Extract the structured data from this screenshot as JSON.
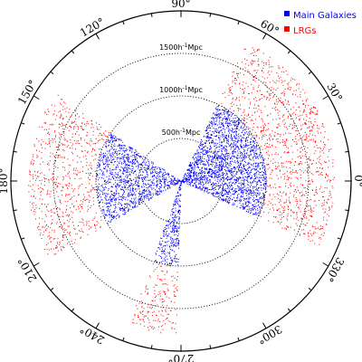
{
  "chart_data": {
    "type": "scatter",
    "coordinate_system": "polar",
    "angle_unit": "degrees",
    "radius_unit": "h^-1 Mpc",
    "radius_max": 2000,
    "grid": "dotted rings",
    "rings": [
      {
        "radius": 500,
        "label": "500h",
        "sup": "-1",
        "unit": "Mpc"
      },
      {
        "radius": 1000,
        "label": "1000h",
        "sup": "-1",
        "unit": "Mpc"
      },
      {
        "radius": 1500,
        "label": "1500h",
        "sup": "-1",
        "unit": "Mpc"
      }
    ],
    "angle_ticks": [
      {
        "angle": 0,
        "label": "0°"
      },
      {
        "angle": 30,
        "label": "30°"
      },
      {
        "angle": 60,
        "label": "60°"
      },
      {
        "angle": 90,
        "label": "90°"
      },
      {
        "angle": 120,
        "label": "120°"
      },
      {
        "angle": 150,
        "label": "150°"
      },
      {
        "angle": 180,
        "label": "180°"
      },
      {
        "angle": 210,
        "label": "210°"
      },
      {
        "angle": 240,
        "label": "240°"
      },
      {
        "angle": 270,
        "label": "270°"
      },
      {
        "angle": 300,
        "label": "300°"
      },
      {
        "angle": 330,
        "label": "330°"
      }
    ],
    "legend_position": "top-right",
    "series": [
      {
        "name": "Main Galaxies",
        "color": "#0000ff",
        "wedges": [
          {
            "angle_min": -25,
            "angle_max": 65,
            "r_min": 0,
            "r_max": 1000,
            "density": 3.2
          },
          {
            "angle_min": 145,
            "angle_max": 210,
            "r_min": 0,
            "r_max": 1000,
            "density": 2.6
          },
          {
            "angle_min": 250,
            "angle_max": 268,
            "r_min": 0,
            "r_max": 1000,
            "density": 2.4
          }
        ]
      },
      {
        "name": "LRGs",
        "color": "#ff0000",
        "wedges": [
          {
            "angle_min": -25,
            "angle_max": 65,
            "r_min": 1000,
            "r_max": 1800,
            "density": 0.7
          },
          {
            "angle_min": 145,
            "angle_max": 210,
            "r_min": 1000,
            "r_max": 1800,
            "density": 0.65
          },
          {
            "angle_min": 250,
            "angle_max": 268,
            "r_min": 1000,
            "r_max": 1800,
            "density": 0.6
          }
        ]
      }
    ]
  }
}
